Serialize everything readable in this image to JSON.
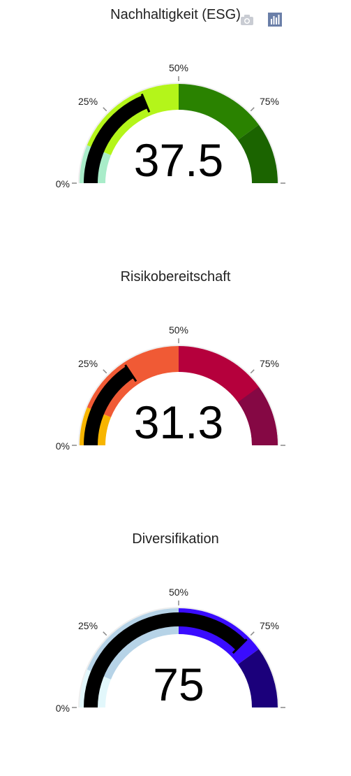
{
  "modebar": {
    "camera_icon": "camera-icon",
    "plot_icon": "bar-chart-icon"
  },
  "gauges": [
    {
      "title": "Risikobereitschaft",
      "value_text": "31.3",
      "ticks": [
        "0%",
        "25%",
        "50%",
        "75%"
      ]
    },
    {
      "title": "Diversifikation",
      "value_text": "75",
      "ticks": [
        "0%",
        "25%",
        "50%",
        "75%"
      ]
    },
    {
      "title": "Nachhaltigkeit (ESG)",
      "value_text": "37.5",
      "ticks": [
        "0%",
        "25%",
        "50%",
        "75%"
      ]
    }
  ],
  "chart_data": [
    {
      "type": "gauge",
      "title": "Risikobereitschaft",
      "value": 31.3,
      "range": [
        0,
        100
      ],
      "ticks": [
        0,
        25,
        50,
        75
      ],
      "tick_labels": [
        "0%",
        "25%",
        "50%",
        "75%"
      ],
      "threshold": 31.3,
      "bands": [
        {
          "from": 0,
          "to": 12.5,
          "color": "#f7b500"
        },
        {
          "from": 12.5,
          "to": 50,
          "color": "#f05a35"
        },
        {
          "from": 50,
          "to": 100,
          "color": "#b5003c"
        },
        {
          "from": 80,
          "to": 100,
          "color": "#850844"
        }
      ],
      "bar_color": "#000000"
    },
    {
      "type": "gauge",
      "title": "Diversifikation",
      "value": 75,
      "range": [
        0,
        100
      ],
      "ticks": [
        0,
        25,
        50,
        75
      ],
      "tick_labels": [
        "0%",
        "25%",
        "50%",
        "75%"
      ],
      "threshold": 75,
      "bands": [
        {
          "from": 0,
          "to": 12.5,
          "color": "#e2f7fb"
        },
        {
          "from": 12.5,
          "to": 50,
          "color": "#b6d3e7"
        },
        {
          "from": 50,
          "to": 80,
          "color": "#3a0cff"
        },
        {
          "from": 80,
          "to": 100,
          "color": "#1b007b"
        }
      ],
      "bar_color": "#000000"
    },
    {
      "type": "gauge",
      "title": "Nachhaltigkeit (ESG)",
      "value": 37.5,
      "range": [
        0,
        100
      ],
      "ticks": [
        0,
        25,
        50,
        75
      ],
      "tick_labels": [
        "0%",
        "25%",
        "50%",
        "75%"
      ],
      "threshold": 37.5,
      "bands": [
        {
          "from": 0,
          "to": 12.5,
          "color": "#a9ecc9"
        },
        {
          "from": 12.5,
          "to": 50,
          "color": "#b4f51a"
        },
        {
          "from": 50,
          "to": 80,
          "color": "#2a8200"
        },
        {
          "from": 80,
          "to": 100,
          "color": "#1b6400"
        }
      ],
      "bar_color": "#000000"
    }
  ]
}
